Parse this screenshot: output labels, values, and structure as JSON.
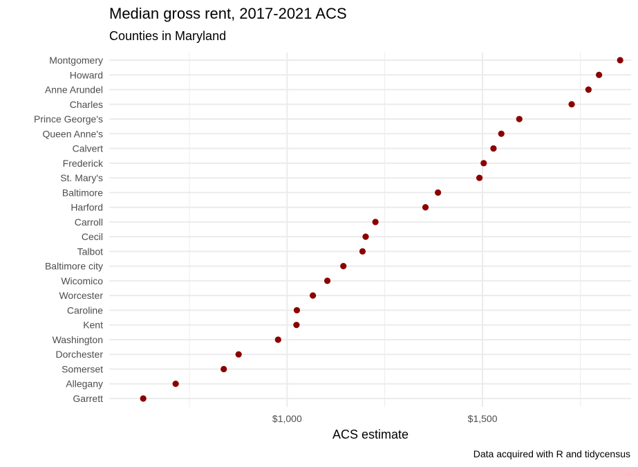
{
  "chart_data": {
    "type": "scatter",
    "title": "Median gross rent, 2017-2021 ACS",
    "subtitle": "Counties in Maryland",
    "xlabel": "ACS estimate",
    "ylabel": "",
    "caption": "Data acquired with R and tidycensus",
    "xlim": [
      545,
      1880
    ],
    "x_major_ticks": [
      1000,
      1500
    ],
    "x_minor_ticks": [
      750,
      1250,
      1750
    ],
    "x_tick_labels": [
      "$1,000",
      "$1,500"
    ],
    "grid": true,
    "legend": "none",
    "point_color": "#8b0000",
    "categories": [
      "Montgomery",
      "Howard",
      "Anne Arundel",
      "Charles",
      "Prince George's",
      "Queen Anne's",
      "Calvert",
      "Frederick",
      "St. Mary's",
      "Baltimore",
      "Harford",
      "Carroll",
      "Cecil",
      "Talbot",
      "Baltimore city",
      "Wicomico",
      "Worcester",
      "Caroline",
      "Kent",
      "Washington",
      "Dorchester",
      "Somerset",
      "Allegany",
      "Garrett"
    ],
    "values": [
      1852,
      1798,
      1771,
      1728,
      1594,
      1548,
      1528,
      1503,
      1492,
      1386,
      1354,
      1226,
      1201,
      1193,
      1144,
      1103,
      1066,
      1025,
      1024,
      977,
      876,
      838,
      715,
      632
    ]
  }
}
